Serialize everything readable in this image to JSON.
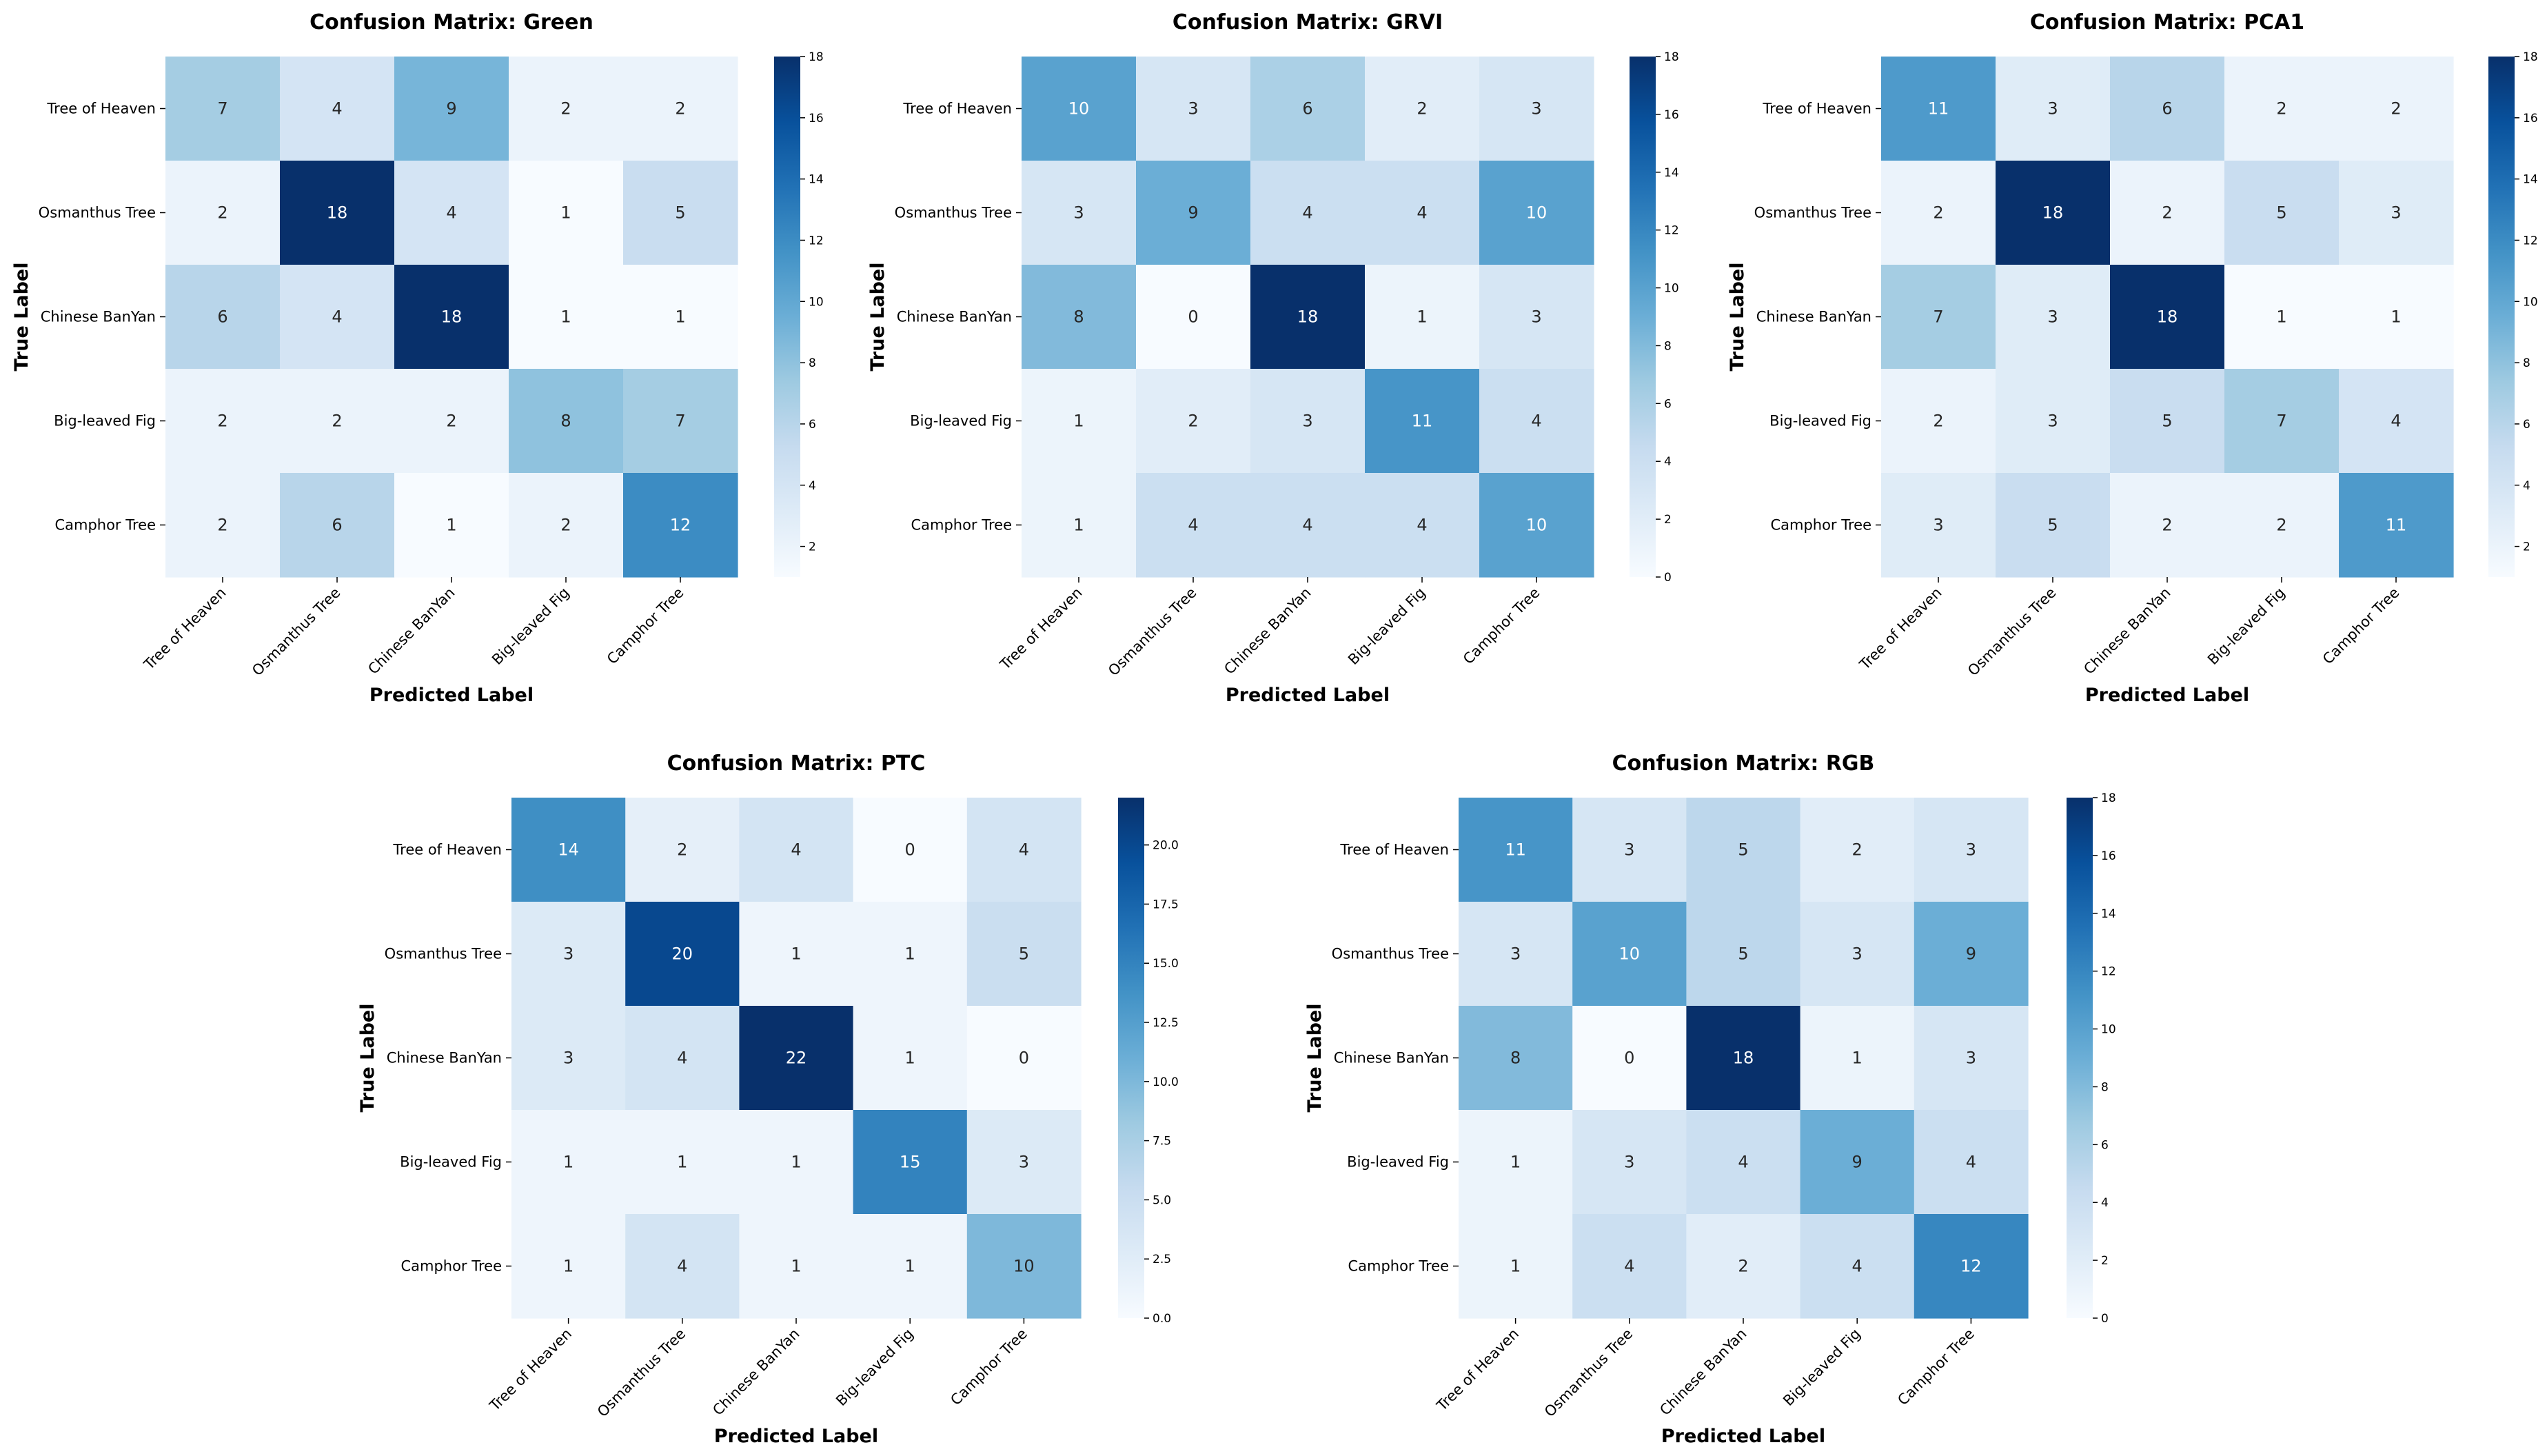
{
  "chart_data": [
    {
      "type": "heatmap",
      "title": "Confusion Matrix: Green",
      "xlabel": "Predicted Label",
      "ylabel": "True Label",
      "classes": [
        "Tree of Heaven",
        "Osmanthus Tree",
        "Chinese BanYan",
        "Big-leaved Fig",
        "Camphor Tree"
      ],
      "matrix": [
        [
          7,
          4,
          9,
          2,
          2
        ],
        [
          2,
          18,
          4,
          1,
          5
        ],
        [
          6,
          4,
          18,
          1,
          1
        ],
        [
          2,
          2,
          2,
          8,
          7
        ],
        [
          2,
          6,
          1,
          2,
          12
        ]
      ],
      "vmin": 1,
      "vmax": 18,
      "colorbar_ticks": [
        "2",
        "4",
        "6",
        "8",
        "10",
        "12",
        "14",
        "16",
        "18"
      ]
    },
    {
      "type": "heatmap",
      "title": "Confusion Matrix: GRVI",
      "xlabel": "Predicted Label",
      "ylabel": "True Label",
      "classes": [
        "Tree of Heaven",
        "Osmanthus Tree",
        "Chinese BanYan",
        "Big-leaved Fig",
        "Camphor Tree"
      ],
      "matrix": [
        [
          10,
          3,
          6,
          2,
          3
        ],
        [
          3,
          9,
          4,
          4,
          10
        ],
        [
          8,
          0,
          18,
          1,
          3
        ],
        [
          1,
          2,
          3,
          11,
          4
        ],
        [
          1,
          4,
          4,
          4,
          10
        ]
      ],
      "vmin": 0,
      "vmax": 18,
      "colorbar_ticks": [
        "0",
        "2",
        "4",
        "6",
        "8",
        "10",
        "12",
        "14",
        "16",
        "18"
      ]
    },
    {
      "type": "heatmap",
      "title": "Confusion Matrix: PCA1",
      "xlabel": "Predicted Label",
      "ylabel": "True Label",
      "classes": [
        "Tree of Heaven",
        "Osmanthus Tree",
        "Chinese BanYan",
        "Big-leaved Fig",
        "Camphor Tree"
      ],
      "matrix": [
        [
          11,
          3,
          6,
          2,
          2
        ],
        [
          2,
          18,
          2,
          5,
          3
        ],
        [
          7,
          3,
          18,
          1,
          1
        ],
        [
          2,
          3,
          5,
          7,
          4
        ],
        [
          3,
          5,
          2,
          2,
          11
        ]
      ],
      "vmin": 1,
      "vmax": 18,
      "colorbar_ticks": [
        "2",
        "4",
        "6",
        "8",
        "10",
        "12",
        "14",
        "16",
        "18"
      ]
    },
    {
      "type": "heatmap",
      "title": "Confusion Matrix: PTC",
      "xlabel": "Predicted Label",
      "ylabel": "True Label",
      "classes": [
        "Tree of Heaven",
        "Osmanthus Tree",
        "Chinese BanYan",
        "Big-leaved Fig",
        "Camphor Tree"
      ],
      "matrix": [
        [
          14,
          2,
          4,
          0,
          4
        ],
        [
          3,
          20,
          1,
          1,
          5
        ],
        [
          3,
          4,
          22,
          1,
          0
        ],
        [
          1,
          1,
          1,
          15,
          3
        ],
        [
          1,
          4,
          1,
          1,
          10
        ]
      ],
      "vmin": 0,
      "vmax": 22,
      "colorbar_ticks": [
        "0.0",
        "2.5",
        "5.0",
        "7.5",
        "10.0",
        "12.5",
        "15.0",
        "17.5",
        "20.0"
      ]
    },
    {
      "type": "heatmap",
      "title": "Confusion Matrix: RGB",
      "xlabel": "Predicted Label",
      "ylabel": "True Label",
      "classes": [
        "Tree of Heaven",
        "Osmanthus Tree",
        "Chinese BanYan",
        "Big-leaved Fig",
        "Camphor Tree"
      ],
      "matrix": [
        [
          11,
          3,
          5,
          2,
          3
        ],
        [
          3,
          10,
          5,
          3,
          9
        ],
        [
          8,
          0,
          18,
          1,
          3
        ],
        [
          1,
          3,
          4,
          9,
          4
        ],
        [
          1,
          4,
          2,
          4,
          12
        ]
      ],
      "vmin": 0,
      "vmax": 18,
      "colorbar_ticks": [
        "0",
        "2",
        "4",
        "6",
        "8",
        "10",
        "12",
        "14",
        "16",
        "18"
      ]
    }
  ]
}
